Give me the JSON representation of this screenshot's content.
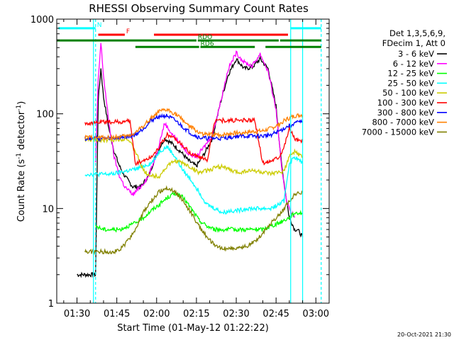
{
  "chart_data": {
    "type": "line",
    "title": "RHESSI Observing Summary Count Rates",
    "xlabel": "Start Time (01-May-12 01:22:22)",
    "ylabel_main": "Count Rate (s",
    "ylabel_sup1": "-1",
    "ylabel_mid": " detector",
    "ylabel_sup2": "-1",
    "ylabel_end": ")",
    "y_scale": "log",
    "ylim": [
      1,
      1000
    ],
    "xlim_minutes": [
      82.37,
      185
    ],
    "x_tick_labels": [
      "01:30",
      "01:45",
      "02:00",
      "02:15",
      "02:30",
      "02:45",
      "03:00"
    ],
    "x_tick_minutes": [
      90,
      105,
      120,
      135,
      150,
      165,
      180
    ],
    "y_tick_labels": [
      "1",
      "10",
      "100",
      "1000"
    ],
    "y_tick_values": [
      1,
      10,
      100,
      1000
    ],
    "legend_header": [
      "Det 1,3,5,6,9,",
      "FDecim 1, Att 0"
    ],
    "legend_placement": "right",
    "timestamp": "20-Oct-2021 21:30",
    "flag_bars": [
      {
        "label": "N",
        "color": "#00ffff",
        "segments": [
          [
            83,
            97
          ],
          [
            170.5,
            182
          ]
        ],
        "y_frac": 0.032
      },
      {
        "label": "F",
        "color": "#ff0000",
        "segments": [
          [
            98,
            108
          ],
          [
            119,
            169.5
          ]
        ],
        "y_frac": 0.055
      },
      {
        "label": "RDO",
        "color": "#008000",
        "segments": [
          [
            82.4,
            135
          ],
          [
            135.5,
            166
          ],
          [
            166.5,
            182
          ]
        ],
        "y_frac": 0.075
      },
      {
        "label": "RD6",
        "color": "#008000",
        "segments": [
          [
            112,
            136
          ],
          [
            136.5,
            157
          ],
          [
            161,
            182
          ]
        ],
        "y_frac": 0.098
      }
    ],
    "markers": [
      {
        "color": "#00ffff",
        "style": "dashed",
        "minute": 97
      },
      {
        "color": "#00ffff",
        "style": "solid",
        "minute": 96.2
      },
      {
        "color": "#00ffff",
        "style": "solid",
        "minute": 170.5
      },
      {
        "color": "#00ffff",
        "style": "solid",
        "minute": 175
      },
      {
        "color": "#00ffff",
        "style": "dashed",
        "minute": 182
      }
    ],
    "series": [
      {
        "name": "3 - 6 keV",
        "color": "#000000",
        "x": [
          90,
          94,
          97,
          98,
          99,
          100,
          102,
          104,
          106,
          108,
          111,
          114,
          117,
          120,
          123,
          126,
          129,
          132,
          135,
          138,
          141,
          144,
          147,
          150,
          153,
          156,
          159,
          162,
          165,
          167,
          169,
          170,
          171,
          172,
          173,
          174,
          175
        ],
        "y": [
          2,
          2,
          2,
          140,
          300,
          150,
          70,
          40,
          28,
          22,
          17,
          17,
          22,
          38,
          55,
          48,
          40,
          32,
          28,
          38,
          55,
          130,
          260,
          380,
          300,
          310,
          380,
          300,
          120,
          30,
          12,
          8,
          7,
          6,
          6,
          5.5,
          5
        ]
      },
      {
        "name": "6 - 12 keV",
        "color": "#ff00ff",
        "x": [
          97,
          98,
          99,
          100,
          102,
          104,
          106,
          108,
          111,
          114,
          117,
          120,
          123,
          126,
          129,
          132,
          135,
          138,
          141,
          144,
          147,
          150,
          153,
          156,
          159,
          162,
          165,
          167,
          169,
          170,
          171,
          172
        ],
        "y": [
          30,
          230,
          560,
          250,
          80,
          35,
          22,
          17,
          14,
          17,
          22,
          38,
          80,
          60,
          48,
          38,
          35,
          45,
          60,
          130,
          300,
          440,
          350,
          320,
          430,
          280,
          110,
          28,
          12,
          10,
          9,
          8
        ]
      },
      {
        "name": "12 - 25 keV",
        "color": "#00ff00",
        "x": [
          97,
          100,
          103,
          106,
          109,
          112,
          115,
          118,
          121,
          124,
          127,
          130,
          133,
          136,
          139,
          142,
          145,
          148,
          151,
          154,
          157,
          160,
          163,
          166,
          168,
          170,
          172,
          175
        ],
        "y": [
          6.5,
          6,
          6,
          6,
          6.5,
          7,
          8,
          9.5,
          11,
          13,
          14.5,
          13,
          10,
          7.5,
          6.5,
          6,
          6,
          6,
          6,
          6,
          6,
          6,
          6.5,
          7,
          7.5,
          8,
          9,
          9
        ]
      },
      {
        "name": "25 - 50 keV",
        "color": "#00ffff",
        "x": [
          93,
          97,
          100,
          103,
          106,
          109,
          112,
          115,
          118,
          121,
          124,
          127,
          130,
          133,
          136,
          139,
          142,
          145,
          148,
          151,
          154,
          157,
          160,
          163,
          166,
          168,
          170,
          172,
          175
        ],
        "y": [
          23,
          23,
          23,
          23,
          24,
          25,
          26,
          28,
          30,
          40,
          45,
          35,
          25,
          20,
          15,
          11,
          10,
          9,
          9.5,
          9.5,
          10,
          10,
          10,
          10,
          11,
          12,
          30,
          35,
          30
        ]
      },
      {
        "name": "50 - 100 keV",
        "color": "#cccc00",
        "x": [
          93,
          97,
          100,
          103,
          106,
          109,
          112,
          115,
          118,
          121,
          124,
          127,
          130,
          133,
          136,
          139,
          142,
          145,
          148,
          151,
          154,
          157,
          160,
          163,
          166,
          168,
          170,
          172,
          175
        ],
        "y": [
          53,
          53,
          53,
          53,
          54,
          55,
          40,
          25,
          22,
          22,
          28,
          32,
          30,
          27,
          24,
          25,
          27,
          28,
          25,
          24,
          25,
          25,
          24,
          23,
          24,
          25,
          35,
          40,
          35
        ]
      },
      {
        "name": "100 - 300 keV",
        "color": "#ff0000",
        "x": [
          93,
          97,
          100,
          103,
          106,
          109,
          110,
          112,
          115,
          118,
          121,
          124,
          127,
          130,
          133,
          136,
          139,
          142,
          145,
          148,
          151,
          154,
          157,
          160,
          163,
          166,
          168,
          170,
          172,
          175
        ],
        "y": [
          80,
          80,
          82,
          82,
          82,
          83,
          84,
          30,
          32,
          35,
          45,
          60,
          55,
          45,
          38,
          35,
          32,
          85,
          85,
          85,
          85,
          85,
          85,
          30,
          32,
          35,
          45,
          70,
          55,
          50
        ]
      },
      {
        "name": "300 - 800 keV",
        "color": "#0000ff",
        "x": [
          93,
          97,
          100,
          103,
          106,
          109,
          112,
          115,
          118,
          121,
          124,
          127,
          130,
          133,
          136,
          139,
          142,
          145,
          148,
          151,
          154,
          157,
          160,
          163,
          166,
          168,
          170,
          172,
          175
        ],
        "y": [
          55,
          55,
          55,
          55,
          56,
          57,
          60,
          70,
          85,
          95,
          95,
          85,
          72,
          62,
          56,
          55,
          55,
          55,
          57,
          58,
          58,
          58,
          58,
          60,
          65,
          70,
          75,
          80,
          82
        ]
      },
      {
        "name": "800 - 7000 keV",
        "color": "#ff8000",
        "x": [
          93,
          97,
          100,
          103,
          106,
          109,
          112,
          115,
          118,
          121,
          124,
          127,
          130,
          133,
          136,
          139,
          142,
          145,
          148,
          151,
          154,
          157,
          160,
          163,
          166,
          168,
          170,
          172,
          175
        ],
        "y": [
          56,
          56,
          56,
          56,
          57,
          58,
          63,
          75,
          90,
          105,
          110,
          100,
          85,
          72,
          63,
          60,
          60,
          60,
          62,
          63,
          64,
          65,
          66,
          70,
          77,
          85,
          90,
          95,
          98
        ]
      },
      {
        "name": "7000 - 15000 keV",
        "color": "#808000",
        "x": [
          93,
          97,
          100,
          103,
          106,
          109,
          112,
          115,
          118,
          121,
          124,
          127,
          130,
          133,
          136,
          139,
          142,
          145,
          148,
          151,
          154,
          157,
          160,
          163,
          166,
          168,
          170,
          172,
          175
        ],
        "y": [
          3.5,
          3.5,
          3.5,
          3.5,
          3.6,
          4.5,
          6,
          9,
          12,
          15,
          16.5,
          15,
          12,
          9,
          6.5,
          5,
          4,
          3.8,
          3.8,
          3.8,
          4,
          4.5,
          5.5,
          7,
          8.5,
          10,
          12,
          14,
          15
        ]
      }
    ]
  }
}
